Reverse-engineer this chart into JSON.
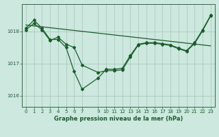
{
  "background_color": "#cce8df",
  "grid_color": "#aaccbb",
  "line_color": "#1a5c2a",
  "spine_color": "#336644",
  "xlabel": "Graphe pression niveau de la mer (hPa)",
  "xlim": [
    -0.5,
    23.5
  ],
  "ylim": [
    1015.65,
    1018.85
  ],
  "yticks": [
    1016,
    1017,
    1018
  ],
  "ytick_labels": [
    "1016",
    "1017",
    "1018"
  ],
  "xticks": [
    0,
    1,
    2,
    3,
    4,
    5,
    6,
    7,
    9,
    10,
    11,
    12,
    13,
    14,
    15,
    16,
    17,
    18,
    19,
    20,
    21,
    22,
    23
  ],
  "line1_x": [
    0,
    1,
    2,
    3,
    4,
    5,
    6,
    7,
    9,
    10,
    11,
    12,
    13,
    14,
    15,
    16,
    17,
    18,
    19,
    20,
    21,
    22,
    23
  ],
  "line1_y": [
    1018.1,
    1018.35,
    1018.1,
    1017.75,
    1017.75,
    1017.5,
    1016.75,
    1016.2,
    1016.55,
    1016.82,
    1016.82,
    1016.85,
    1017.25,
    1017.6,
    1017.65,
    1017.65,
    1017.62,
    1017.58,
    1017.48,
    1017.4,
    1017.65,
    1018.05,
    1018.5
  ],
  "line2_x": [
    0,
    1,
    2,
    3,
    4,
    5,
    6,
    7,
    9,
    10,
    11,
    12,
    13,
    14,
    15,
    16,
    17,
    18,
    19,
    20,
    21,
    22,
    23
  ],
  "line2_y": [
    1018.05,
    1018.25,
    1018.05,
    1017.72,
    1017.82,
    1017.6,
    1017.5,
    1016.95,
    1016.72,
    1016.78,
    1016.78,
    1016.8,
    1017.2,
    1017.58,
    1017.63,
    1017.63,
    1017.6,
    1017.56,
    1017.46,
    1017.38,
    1017.62,
    1018.02,
    1018.48
  ],
  "line3_x": [
    0,
    23
  ],
  "line3_y": [
    1018.2,
    1017.55
  ],
  "marker": "D",
  "marker_size": 2.0,
  "line_width": 0.9,
  "tick_fontsize": 5.0,
  "xlabel_fontsize": 6.0
}
